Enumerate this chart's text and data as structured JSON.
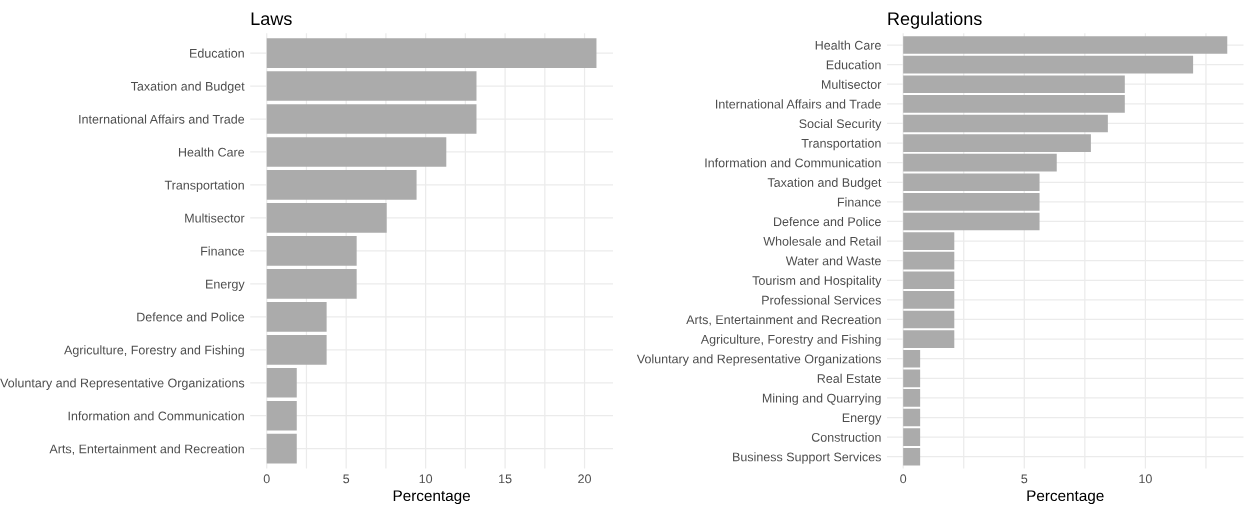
{
  "chart_data": [
    {
      "type": "bar",
      "orientation": "horizontal",
      "title": "Laws",
      "xlabel": "Percentage",
      "color": "#ababab",
      "grid": true,
      "categories": [
        "Education",
        "Taxation and Budget",
        "International Affairs and Trade",
        "Health Care",
        "Transportation",
        "Multisector",
        "Finance",
        "Energy",
        "Defence and Police",
        "Agriculture, Forestry and Fishing",
        "Voluntary and Representative Organizations",
        "Information and Communication",
        "Arts, Entertainment and Recreation"
      ],
      "values": [
        20.75,
        13.2,
        13.2,
        11.3,
        9.43,
        7.55,
        5.66,
        5.66,
        3.77,
        3.77,
        1.89,
        1.89,
        1.89
      ],
      "xlim": [
        -1.04,
        21.79
      ],
      "xticks": [
        0,
        {
          "value": 2.5,
          "label": null
        },
        5,
        {
          "value": 7.5,
          "label": null
        },
        10,
        {
          "value": 12.5,
          "label": null
        },
        15,
        {
          "value": 17.5,
          "label": null
        },
        20
      ]
    },
    {
      "type": "bar",
      "orientation": "horizontal",
      "title": "Regulations",
      "xlabel": "Percentage",
      "color": "#ababab",
      "grid": true,
      "categories": [
        "Health Care",
        "Education",
        "Multisector",
        "International Affairs and Trade",
        "Social Security",
        "Transportation",
        "Information and Communication",
        "Taxation and Budget",
        "Finance",
        "Defence and Police",
        "Wholesale and Retail",
        "Water and Waste",
        "Tourism and Hospitality",
        "Professional Services",
        "Arts, Entertainment and Recreation",
        "Agriculture, Forestry and Fishing",
        "Voluntary and Representative Organizations",
        "Real Estate",
        "Mining and Quarrying",
        "Energy",
        "Construction",
        "Business Support Services"
      ],
      "values": [
        13.38,
        11.97,
        9.15,
        9.15,
        8.45,
        7.75,
        6.34,
        5.63,
        5.63,
        5.63,
        2.11,
        2.11,
        2.11,
        2.11,
        2.11,
        2.11,
        0.7,
        0.7,
        0.7,
        0.7,
        0.7,
        0.7
      ],
      "xlim": [
        -0.67,
        14.05
      ],
      "xticks": [
        0,
        {
          "value": 2.5,
          "label": null
        },
        5,
        {
          "value": 7.5,
          "label": null
        },
        10,
        {
          "value": 12.5,
          "label": null
        }
      ]
    }
  ]
}
